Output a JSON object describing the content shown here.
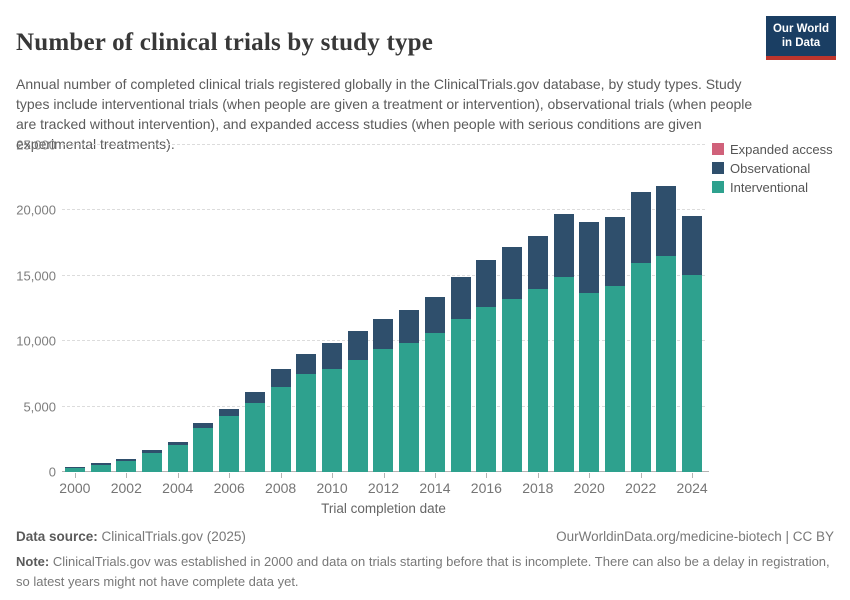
{
  "header": {
    "title": "Number of clinical trials by study type",
    "logo": {
      "line1": "Our World",
      "line2": "in Data",
      "bg_color": "#1A3E63",
      "stripe_color": "#BE352C"
    }
  },
  "subtitle": "Annual number of completed clinical trials registered globally in the ClinicalTrials.gov database, by study types. Study types include interventional trials (when people are given a treatment or intervention), observational trials (when people are tracked without intervention), and expanded access studies (when people with serious conditions are given experimental treatments).",
  "chart_data": {
    "type": "bar",
    "stacked": true,
    "title": "Number of clinical trials by study type",
    "xlabel": "Trial completion date",
    "ylabel": "",
    "ylim": [
      0,
      25000
    ],
    "grid": "horizontal dashed",
    "legend_position": "right-top",
    "x": [
      2000,
      2001,
      2002,
      2003,
      2004,
      2005,
      2006,
      2007,
      2008,
      2009,
      2010,
      2011,
      2012,
      2013,
      2014,
      2015,
      2016,
      2017,
      2018,
      2019,
      2020,
      2021,
      2022,
      2023,
      2024
    ],
    "series": [
      {
        "name": "Interventional",
        "color": "#2EA18E",
        "values": [
          330,
          530,
          810,
          1450,
          2060,
          3360,
          4300,
          5300,
          6500,
          7500,
          7900,
          8600,
          9400,
          9900,
          10650,
          11700,
          12600,
          13250,
          14000,
          14900,
          13650,
          14200,
          15950,
          16550,
          15050
        ]
      },
      {
        "name": "Observational",
        "color": "#2F4F6C",
        "values": [
          90,
          150,
          200,
          200,
          240,
          360,
          490,
          830,
          1350,
          1540,
          1970,
          2180,
          2290,
          2500,
          2700,
          3200,
          3600,
          3950,
          4050,
          4800,
          5450,
          5300,
          5450,
          5300,
          4500
        ]
      },
      {
        "name": "Expanded access",
        "color": "#D0617A",
        "values": [
          0,
          0,
          0,
          0,
          0,
          0,
          0,
          0,
          0,
          0,
          0,
          0,
          0,
          0,
          0,
          0,
          0,
          0,
          0,
          0,
          0,
          0,
          0,
          0,
          0
        ]
      }
    ],
    "totals": [
      420,
      680,
      1010,
      1650,
      2300,
      3720,
      4790,
      6130,
      7850,
      9040,
      9870,
      10780,
      11690,
      12400,
      13350,
      14900,
      16200,
      17200,
      18050,
      19700,
      19100,
      19500,
      21400,
      21850,
      19550
    ],
    "yticks": [
      0,
      5000,
      10000,
      15000,
      20000,
      25000
    ],
    "ytick_labels": [
      "0",
      "5,000",
      "10,000",
      "15,000",
      "20,000",
      "25,000"
    ],
    "xtick_labels": [
      "2000",
      "2002",
      "2004",
      "2006",
      "2008",
      "2010",
      "2012",
      "2014",
      "2016",
      "2018",
      "2020",
      "2022",
      "2024"
    ],
    "legend": [
      {
        "label": "Expanded access",
        "color": "#D0617A"
      },
      {
        "label": "Observational",
        "color": "#2F4F6C"
      },
      {
        "label": "Interventional",
        "color": "#2EA18E"
      }
    ]
  },
  "footer": {
    "data_source_label": "Data source:",
    "data_source_value": " ClinicalTrials.gov (2025)",
    "credit": "OurWorldinData.org/medicine-biotech | CC BY",
    "note_label": "Note:",
    "note_text": " ClinicalTrials.gov was established in 2000 and data on trials starting before that is incomplete. There can also be a delay in registration, so latest years might not have complete data yet."
  }
}
